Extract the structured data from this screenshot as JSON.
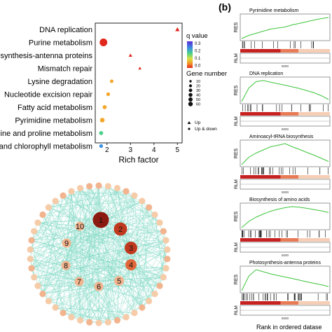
{
  "panel_b_label": "(b)",
  "colors": {
    "node_dark": "#8b1a10",
    "node_red": "#c0391f",
    "node_orange": "#e0673a",
    "node_light": "#f2b48e",
    "node_pale": "#f6cba8",
    "edge": "#7ed8c4",
    "gsea_line": "#3cc43c",
    "heat_dark": "#c72020",
    "heat_mid": "#e87a55",
    "heat_light": "#f6cdb5"
  },
  "chart_data": [
    {
      "type": "scatter",
      "title": "",
      "xlabel": "Rich factor",
      "ylabel": "",
      "xlim": [
        1.5,
        5.2
      ],
      "xticks": [
        "2",
        "3",
        "4",
        "5"
      ],
      "categories": [
        "DNA replication",
        "Purine metabolism",
        "Photosynthesis-antenna proteins",
        "Mismatch repair",
        "Lysine degradation",
        "Nucleotide excision repair",
        "Fatty acid metabolism",
        "Pyrimidine metabolism",
        "Arginine and proline metabolism",
        "Porphyrin and chlorophyll metabolism"
      ],
      "category_labels_shown": [
        "DNA replication",
        "Purine metabolism",
        "biosynthesis-antenna proteins",
        "Mismatch repair",
        "Lysine degradation",
        "Nucleotide excision repair",
        "Fatty acid metabolism",
        "Pyrimidine metabolism",
        "ine and proline metabolism",
        "and chlorophyll metabolism"
      ],
      "points": [
        {
          "x": 5.0,
          "gene_number": 10,
          "q_value": 0.0,
          "shape": "triangle"
        },
        {
          "x": 1.85,
          "gene_number": 50,
          "q_value": 0.0,
          "shape": "circle"
        },
        {
          "x": 3.0,
          "gene_number": 5,
          "q_value": 0.03,
          "shape": "triangle"
        },
        {
          "x": 3.4,
          "gene_number": 3,
          "q_value": 0.04,
          "shape": "triangle"
        },
        {
          "x": 2.2,
          "gene_number": 5,
          "q_value": 0.1,
          "shape": "circle"
        },
        {
          "x": 2.05,
          "gene_number": 6,
          "q_value": 0.12,
          "shape": "circle"
        },
        {
          "x": 1.9,
          "gene_number": 8,
          "q_value": 0.13,
          "shape": "circle"
        },
        {
          "x": 1.8,
          "gene_number": 12,
          "q_value": 0.14,
          "shape": "circle"
        },
        {
          "x": 1.75,
          "gene_number": 8,
          "q_value": 0.28,
          "shape": "circle"
        },
        {
          "x": 1.75,
          "gene_number": 6,
          "q_value": 0.33,
          "shape": "circle"
        }
      ],
      "legend_q": {
        "title": "q value",
        "ticks": [
          "0.3",
          "0.2",
          "0.1",
          "0.0"
        ]
      },
      "legend_size": {
        "title": "Gene number",
        "ticks": [
          "10",
          "20",
          "30",
          "40",
          "50",
          "60"
        ]
      },
      "legend_shape": {
        "items": [
          "Up",
          "Up & down"
        ]
      }
    },
    {
      "type": "network",
      "nodes_ranked": [
        "1",
        "2",
        "3",
        "4",
        "5",
        "6",
        "7",
        "8",
        "9",
        "10"
      ]
    },
    {
      "type": "line",
      "title": "",
      "ylabel_top": "RES",
      "ylabel_bottom": "RLM",
      "xlabel": "Rank in ordered datase",
      "tick_label": "5000",
      "panels": [
        {
          "name": "Pyrimidine metabolism",
          "res": [
            0,
            0.15,
            0.25,
            0.35,
            0.45,
            0.5,
            0.55,
            0.65,
            0.72,
            0.8,
            0.88,
            0.95,
            1.0
          ]
        },
        {
          "name": "DNA replication",
          "res": [
            0,
            0.65,
            0.95,
            1.0,
            0.92,
            0.85,
            0.78,
            0.7,
            0.62,
            0.52,
            0.42,
            0.28,
            0.1
          ]
        },
        {
          "name": "Aminoacyl-tRNA biosynthesis",
          "res": [
            0,
            0.35,
            0.55,
            0.7,
            0.85,
            0.92,
            1.0,
            0.85,
            0.72,
            0.58,
            0.45,
            0.3,
            0.15
          ]
        },
        {
          "name": "Biosynthesis of amino acids",
          "res": [
            0,
            0.3,
            0.5,
            0.65,
            0.78,
            0.88,
            0.95,
            1.0,
            0.97,
            0.92,
            0.86,
            0.8,
            0.72
          ]
        },
        {
          "name": "Photosynthesis-antenna proteins",
          "res": [
            0,
            0.7,
            1.0,
            0.9,
            0.8,
            0.72,
            0.65,
            0.58,
            0.5,
            0.42,
            0.35,
            0.28,
            0.2
          ]
        }
      ]
    }
  ]
}
